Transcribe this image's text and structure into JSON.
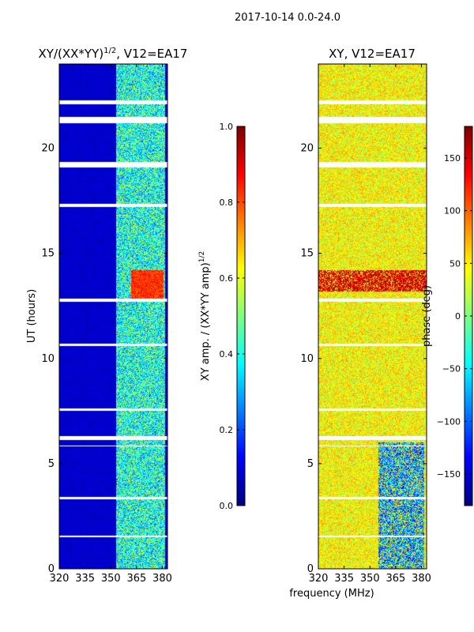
{
  "suptitle": "2017-10-14 0.0-24.0",
  "chart_data": [
    {
      "type": "heatmap",
      "title_base": "XY/(XX*YY)",
      "title_exponent": "1/2",
      "title_suffix": ", V12=EA17",
      "xlabel": "",
      "ylabel": "UT (hours)",
      "xlim": [
        320,
        383
      ],
      "ylim": [
        0,
        24
      ],
      "x_ticks": [
        320,
        335,
        350,
        365,
        380
      ],
      "y_ticks": [
        0,
        5,
        10,
        15,
        20
      ],
      "colorbar": {
        "label_base": "XY amp. / (XX*YY amp)",
        "label_exponent": "1/2",
        "min": 0.0,
        "max": 1.0,
        "ticks": [
          0.0,
          0.2,
          0.4,
          0.6,
          0.8,
          1.0
        ],
        "tick_labels": [
          "0.0",
          "0.2",
          "0.4",
          "0.6",
          "0.8",
          "1.0"
        ],
        "colormap": "jet"
      },
      "data_gaps_ut": [
        [
          22.1,
          22.3
        ],
        [
          21.2,
          21.5
        ],
        [
          19.1,
          19.35
        ],
        [
          17.2,
          17.35
        ],
        [
          12.7,
          12.85
        ],
        [
          10.6,
          10.7
        ],
        [
          7.5,
          7.6
        ],
        [
          6.1,
          6.3
        ],
        [
          5.8,
          5.85
        ],
        [
          3.3,
          3.4
        ],
        [
          1.5,
          1.55
        ]
      ],
      "features": [
        {
          "desc": "background amplitude",
          "value": 0.05
        },
        {
          "freq_range": [
            353,
            382
          ],
          "ut_range": [
            0,
            24
          ],
          "value": 0.4,
          "desc": "elevated correlation band"
        },
        {
          "freq_range": [
            362,
            381
          ],
          "ut_range": [
            12.8,
            14.2
          ],
          "value": 0.9,
          "desc": "strong correlation"
        }
      ]
    },
    {
      "type": "heatmap",
      "title": "XY, V12=EA17",
      "xlabel": "",
      "ylabel": "",
      "xlim": [
        320,
        383
      ],
      "ylim": [
        0,
        24
      ],
      "x_ticks": [
        320,
        335,
        350,
        365,
        380
      ],
      "y_ticks": [
        0,
        5,
        10,
        15,
        20
      ],
      "colorbar": {
        "label": "phase (deg)",
        "min": -180,
        "max": 180,
        "ticks": [
          -150,
          -100,
          -50,
          0,
          50,
          100,
          150
        ],
        "tick_labels": [
          "−150",
          "−100",
          "−50",
          "0",
          "50",
          "100",
          "150"
        ],
        "colormap": "jet"
      },
      "data_gaps_ut": [
        [
          22.1,
          22.3
        ],
        [
          21.2,
          21.5
        ],
        [
          19.1,
          19.35
        ],
        [
          17.2,
          17.35
        ],
        [
          12.7,
          12.85
        ],
        [
          10.6,
          10.7
        ],
        [
          7.5,
          7.6
        ],
        [
          6.1,
          6.3
        ],
        [
          5.8,
          5.85
        ],
        [
          3.3,
          3.4
        ],
        [
          1.5,
          1.55
        ]
      ],
      "features": [
        {
          "desc": "dominant phase",
          "value": 45
        },
        {
          "freq_range": [
            355,
            382
          ],
          "ut_range": [
            0,
            6
          ],
          "value": -90,
          "desc": "negative phase region"
        },
        {
          "freq_range": [
            320,
            383
          ],
          "ut_range": [
            13.2,
            14.2
          ],
          "value": 170,
          "desc": "phase wrap band"
        }
      ]
    }
  ],
  "shared_xlabel": "frequency (MHz)"
}
